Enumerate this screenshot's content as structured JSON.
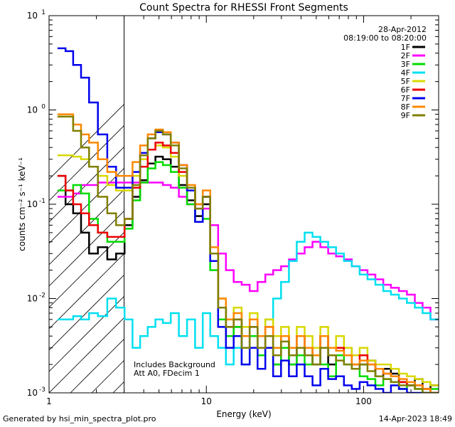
{
  "footer": {
    "generated_by": "Generated by hsi_min_spectra_plot.pro",
    "timestamp": "14-Apr-2023 18:49"
  },
  "chart_data": {
    "type": "line",
    "title": "Count Spectra for RHESSI Front Segments",
    "xlabel": "Energy (keV)",
    "ylabel": "counts cm⁻² s⁻¹ keV⁻¹",
    "xscale": "log",
    "yscale": "log",
    "xlim": [
      1,
      300
    ],
    "ylim": [
      0.001,
      10
    ],
    "x_ticks": [
      {
        "value": 1,
        "label": "1"
      },
      {
        "value": 10,
        "label": "10"
      },
      {
        "value": 100,
        "label": "100"
      }
    ],
    "y_ticks": [
      {
        "value": 0.001,
        "base": "10",
        "exp": "-3"
      },
      {
        "value": 0.01,
        "base": "10",
        "exp": "-2"
      },
      {
        "value": 0.1,
        "base": "10",
        "exp": "-1"
      },
      {
        "value": 1,
        "base": "10",
        "exp": "0"
      },
      {
        "value": 10,
        "base": "10",
        "exp": "1"
      }
    ],
    "date": "28-Apr-2012",
    "time_range": "08:19:00 to 08:20:00",
    "annotations": [
      "Includes Background",
      "Att A0, FDecim 1"
    ],
    "hatched_region": [
      1,
      3
    ],
    "legend_position": "top-right",
    "series": [
      {
        "name": "1F",
        "color": "#000000",
        "x": [
          1.2,
          1.35,
          1.5,
          1.7,
          1.9,
          2.2,
          2.5,
          2.85,
          3.2,
          3.6,
          4.0,
          4.5,
          5.0,
          5.6,
          6.3,
          7.1,
          8.0,
          9.0,
          10.0,
          11.2,
          12.6,
          14.1,
          15.8,
          17.8,
          20.0,
          22.4,
          25.1,
          28.2,
          31.6,
          35.5,
          39.8,
          44.7,
          50.1,
          56.2,
          63.1,
          70.8,
          79.4,
          89.1,
          100,
          112,
          126,
          141,
          158,
          178,
          200,
          224,
          251,
          282
        ],
        "values": [
          0.2,
          0.1,
          0.08,
          0.05,
          0.03,
          0.035,
          0.026,
          0.03,
          0.06,
          0.12,
          0.18,
          0.27,
          0.32,
          0.3,
          0.25,
          0.16,
          0.11,
          0.075,
          0.1,
          0.03,
          0.008,
          0.004,
          0.005,
          0.003,
          0.004,
          0.0025,
          0.004,
          0.002,
          0.003,
          0.002,
          0.003,
          0.0025,
          0.002,
          0.004,
          0.002,
          0.0025,
          0.003,
          0.0018,
          0.002,
          0.0022,
          0.0015,
          0.0018,
          0.0016,
          0.0013,
          0.0012,
          0.0014,
          0.0011,
          0.0012
        ]
      },
      {
        "name": "2F",
        "color": "#ff00ff",
        "x": [
          1.2,
          1.35,
          1.5,
          1.7,
          1.9,
          2.2,
          2.5,
          2.85,
          3.2,
          3.6,
          4.0,
          4.5,
          5.0,
          5.6,
          6.3,
          7.1,
          8.0,
          9.0,
          10.0,
          11.2,
          12.6,
          14.1,
          15.8,
          17.8,
          20.0,
          22.4,
          25.1,
          28.2,
          31.6,
          35.5,
          39.8,
          44.7,
          50.1,
          56.2,
          63.1,
          70.8,
          79.4,
          89.1,
          100,
          112,
          126,
          141,
          158,
          178,
          200,
          224,
          251,
          282
        ],
        "values": [
          0.12,
          0.12,
          0.13,
          0.16,
          0.16,
          0.17,
          0.17,
          0.17,
          0.17,
          0.17,
          0.17,
          0.17,
          0.17,
          0.16,
          0.15,
          0.12,
          0.1,
          0.09,
          0.09,
          0.06,
          0.03,
          0.02,
          0.015,
          0.014,
          0.012,
          0.015,
          0.018,
          0.02,
          0.022,
          0.026,
          0.03,
          0.035,
          0.04,
          0.035,
          0.03,
          0.028,
          0.026,
          0.022,
          0.02,
          0.018,
          0.016,
          0.014,
          0.013,
          0.012,
          0.011,
          0.009,
          0.008,
          0.006
        ]
      },
      {
        "name": "3F",
        "color": "#00dd00",
        "x": [
          1.2,
          1.35,
          1.5,
          1.7,
          1.9,
          2.2,
          2.5,
          2.85,
          3.2,
          3.6,
          4.0,
          4.5,
          5.0,
          5.6,
          6.3,
          7.1,
          8.0,
          9.0,
          10.0,
          11.2,
          12.6,
          14.1,
          15.8,
          17.8,
          20.0,
          22.4,
          25.1,
          28.2,
          31.6,
          35.5,
          39.8,
          44.7,
          50.1,
          56.2,
          63.1,
          70.8,
          79.4,
          89.1,
          100,
          112,
          126,
          141,
          158,
          178,
          200,
          224,
          251,
          282
        ],
        "values": [
          0.14,
          0.14,
          0.16,
          0.13,
          0.07,
          0.05,
          0.04,
          0.04,
          0.055,
          0.11,
          0.17,
          0.24,
          0.28,
          0.26,
          0.22,
          0.15,
          0.1,
          0.065,
          0.07,
          0.02,
          0.006,
          0.004,
          0.005,
          0.003,
          0.004,
          0.0025,
          0.003,
          0.002,
          0.003,
          0.002,
          0.0025,
          0.002,
          0.003,
          0.002,
          0.0015,
          0.0025,
          0.002,
          0.0018,
          0.0015,
          0.0014,
          0.0012,
          0.0014,
          0.0013,
          0.0011,
          0.0012,
          0.0011,
          0.001,
          0.0011
        ]
      },
      {
        "name": "4F",
        "color": "#00e0f0",
        "x": [
          1.2,
          1.35,
          1.5,
          1.7,
          1.9,
          2.2,
          2.5,
          2.85,
          3.2,
          3.6,
          4.0,
          4.5,
          5.0,
          5.6,
          6.3,
          7.1,
          8.0,
          9.0,
          10.0,
          11.2,
          12.6,
          14.1,
          15.8,
          17.8,
          20.0,
          22.4,
          25.1,
          28.2,
          31.6,
          35.5,
          39.8,
          44.7,
          50.1,
          56.2,
          63.1,
          70.8,
          79.4,
          89.1,
          100,
          112,
          126,
          141,
          158,
          178,
          200,
          224,
          251,
          282
        ],
        "values": [
          0.006,
          0.006,
          0.0065,
          0.006,
          0.007,
          0.0065,
          0.01,
          0.008,
          0.006,
          0.003,
          0.004,
          0.005,
          0.006,
          0.0055,
          0.007,
          0.004,
          0.006,
          0.003,
          0.007,
          0.004,
          0.003,
          0.002,
          0.003,
          0.002,
          0.003,
          0.004,
          0.006,
          0.01,
          0.015,
          0.025,
          0.04,
          0.05,
          0.045,
          0.04,
          0.035,
          0.03,
          0.025,
          0.022,
          0.018,
          0.016,
          0.014,
          0.012,
          0.011,
          0.01,
          0.009,
          0.008,
          0.007,
          0.006
        ]
      },
      {
        "name": "5F",
        "color": "#d8d800",
        "x": [
          1.2,
          1.35,
          1.5,
          1.7,
          1.9,
          2.2,
          2.5,
          2.85,
          3.2,
          3.6,
          4.0,
          4.5,
          5.0,
          5.6,
          6.3,
          7.1,
          8.0,
          9.0,
          10.0,
          11.2,
          12.6,
          14.1,
          15.8,
          17.8,
          20.0,
          22.4,
          25.1,
          28.2,
          31.6,
          35.5,
          39.8,
          44.7,
          50.1,
          56.2,
          63.1,
          70.8,
          79.4,
          89.1,
          100,
          112,
          126,
          141,
          158,
          178,
          200,
          224,
          251,
          282
        ],
        "values": [
          0.33,
          0.33,
          0.32,
          0.3,
          0.25,
          0.2,
          0.16,
          0.14,
          0.14,
          0.2,
          0.3,
          0.38,
          0.42,
          0.4,
          0.32,
          0.2,
          0.14,
          0.1,
          0.12,
          0.03,
          0.01,
          0.006,
          0.008,
          0.005,
          0.007,
          0.004,
          0.006,
          0.004,
          0.005,
          0.003,
          0.005,
          0.004,
          0.003,
          0.005,
          0.003,
          0.004,
          0.003,
          0.0025,
          0.003,
          0.0022,
          0.002,
          0.002,
          0.0018,
          0.0016,
          0.0015,
          0.0014,
          0.0013,
          0.0012
        ]
      },
      {
        "name": "6F",
        "color": "#ee0000",
        "x": [
          1.2,
          1.35,
          1.5,
          1.7,
          1.9,
          2.2,
          2.5,
          2.85,
          3.2,
          3.6,
          4.0,
          4.5,
          5.0,
          5.6,
          6.3,
          7.1,
          8.0,
          9.0,
          10.0,
          11.2,
          12.6,
          14.1,
          15.8,
          17.8,
          20.0,
          22.4,
          25.1,
          28.2,
          31.6,
          35.5,
          39.8,
          44.7,
          50.1,
          56.2,
          63.1,
          70.8,
          79.4,
          89.1,
          100,
          112,
          126,
          141,
          158,
          178,
          200,
          224,
          251,
          282
        ],
        "values": [
          0.2,
          0.14,
          0.1,
          0.08,
          0.06,
          0.05,
          0.045,
          0.045,
          0.07,
          0.15,
          0.25,
          0.38,
          0.45,
          0.42,
          0.35,
          0.22,
          0.15,
          0.1,
          0.12,
          0.03,
          0.008,
          0.005,
          0.006,
          0.004,
          0.005,
          0.003,
          0.005,
          0.003,
          0.004,
          0.003,
          0.004,
          0.003,
          0.0025,
          0.004,
          0.003,
          0.003,
          0.0025,
          0.002,
          0.0025,
          0.002,
          0.0018,
          0.0016,
          0.0015,
          0.0013,
          0.0012,
          0.0012,
          0.0011,
          0.001
        ]
      },
      {
        "name": "7F",
        "color": "#0000ee",
        "x": [
          1.2,
          1.35,
          1.5,
          1.7,
          1.9,
          2.2,
          2.5,
          2.85,
          3.2,
          3.6,
          4.0,
          4.5,
          5.0,
          5.6,
          6.3,
          7.1,
          8.0,
          9.0,
          10.0,
          11.2,
          12.6,
          14.1,
          15.8,
          17.8,
          20.0,
          22.4,
          25.1,
          28.2,
          31.6,
          35.5,
          39.8,
          44.7,
          50.1,
          56.2,
          63.1,
          70.8,
          79.4,
          89.1,
          100,
          112,
          126,
          141,
          158,
          178,
          200,
          224,
          251,
          282
        ],
        "values": [
          4.5,
          4.2,
          3.0,
          2.2,
          1.2,
          0.55,
          0.25,
          0.15,
          0.15,
          0.22,
          0.35,
          0.5,
          0.58,
          0.55,
          0.45,
          0.26,
          0.14,
          0.065,
          0.12,
          0.025,
          0.005,
          0.003,
          0.004,
          0.002,
          0.003,
          0.0018,
          0.003,
          0.0015,
          0.0022,
          0.0015,
          0.002,
          0.0015,
          0.0012,
          0.0018,
          0.0014,
          0.0015,
          0.0012,
          0.0011,
          0.0013,
          0.0012,
          0.0011,
          0.001,
          0.0012,
          0.0011,
          0.001,
          0.001,
          0.001,
          0.001
        ]
      },
      {
        "name": "8F",
        "color": "#ff8800",
        "x": [
          1.2,
          1.35,
          1.5,
          1.7,
          1.9,
          2.2,
          2.5,
          2.85,
          3.2,
          3.6,
          4.0,
          4.5,
          5.0,
          5.6,
          6.3,
          7.1,
          8.0,
          9.0,
          10.0,
          11.2,
          12.6,
          14.1,
          15.8,
          17.8,
          20.0,
          22.4,
          25.1,
          28.2,
          31.6,
          35.5,
          39.8,
          44.7,
          50.1,
          56.2,
          63.1,
          70.8,
          79.4,
          89.1,
          100,
          112,
          126,
          141,
          158,
          178,
          200,
          224,
          251,
          282
        ],
        "values": [
          0.9,
          0.9,
          0.7,
          0.55,
          0.45,
          0.3,
          0.22,
          0.2,
          0.2,
          0.28,
          0.42,
          0.55,
          0.62,
          0.58,
          0.45,
          0.26,
          0.16,
          0.1,
          0.14,
          0.035,
          0.01,
          0.006,
          0.007,
          0.004,
          0.006,
          0.004,
          0.005,
          0.003,
          0.004,
          0.003,
          0.004,
          0.003,
          0.0025,
          0.004,
          0.003,
          0.0028,
          0.0025,
          0.002,
          0.0022,
          0.002,
          0.0018,
          0.0016,
          0.0015,
          0.0014,
          0.0013,
          0.0012,
          0.0011,
          0.001
        ]
      },
      {
        "name": "9F",
        "color": "#808000",
        "x": [
          1.2,
          1.35,
          1.5,
          1.7,
          1.9,
          2.2,
          2.5,
          2.85,
          3.2,
          3.6,
          4.0,
          4.5,
          5.0,
          5.6,
          6.3,
          7.1,
          8.0,
          9.0,
          10.0,
          11.2,
          12.6,
          14.1,
          15.8,
          17.8,
          20.0,
          22.4,
          25.1,
          28.2,
          31.6,
          35.5,
          39.8,
          44.7,
          50.1,
          56.2,
          63.1,
          70.8,
          79.4,
          89.1,
          100,
          112,
          126,
          141,
          158,
          178,
          200,
          224,
          251,
          282
        ],
        "values": [
          0.85,
          0.85,
          0.6,
          0.4,
          0.25,
          0.12,
          0.08,
          0.06,
          0.07,
          0.16,
          0.33,
          0.5,
          0.6,
          0.55,
          0.42,
          0.24,
          0.15,
          0.09,
          0.12,
          0.03,
          0.008,
          0.005,
          0.006,
          0.003,
          0.005,
          0.003,
          0.004,
          0.0025,
          0.0035,
          0.0025,
          0.003,
          0.0025,
          0.002,
          0.003,
          0.0025,
          0.0022,
          0.002,
          0.0018,
          0.002,
          0.0017,
          0.0015,
          0.0014,
          0.0013,
          0.0012,
          0.0012,
          0.0011,
          0.001,
          0.001
        ]
      }
    ]
  }
}
